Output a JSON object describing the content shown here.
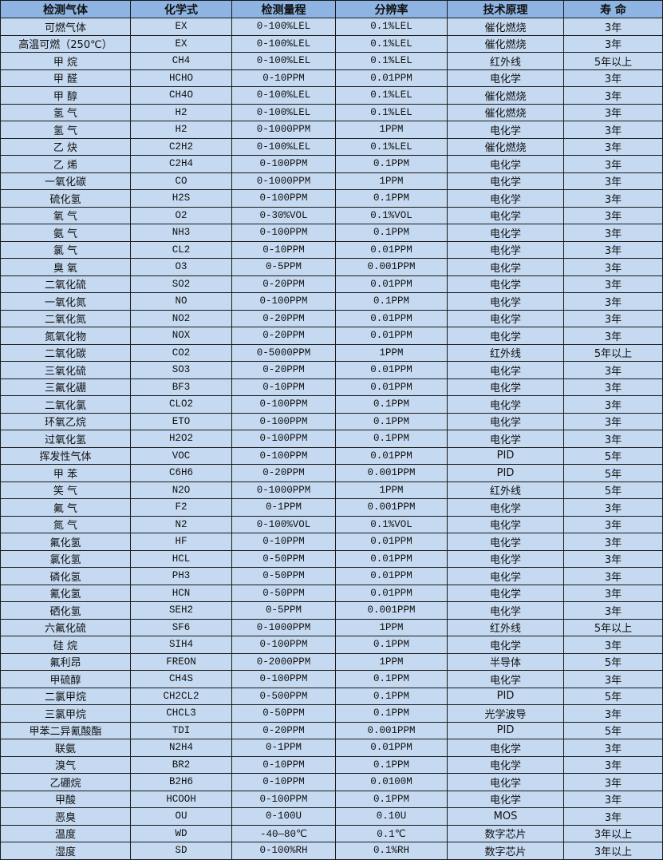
{
  "colors": {
    "header_bg": "#8db4e2",
    "row_bg": "#c5d9f1",
    "border": "#1a1a1a"
  },
  "table": {
    "headers": [
      "检测气体",
      "化学式",
      "检测量程",
      "分辨率",
      "技术原理",
      "寿 命"
    ],
    "rows": [
      [
        "可燃气体",
        "EX",
        "0-100%LEL",
        "0.1%LEL",
        "催化燃烧",
        "3年"
      ],
      [
        "高温可燃（250℃）",
        "EX",
        "0-100%LEL",
        "0.1%LEL",
        "催化燃烧",
        "3年"
      ],
      [
        "甲 烷",
        "CH4",
        "0-100%LEL",
        "0.1%LEL",
        "红外线",
        "5年以上"
      ],
      [
        "甲 醛",
        "HCHO",
        "0-10PPM",
        "0.01PPM",
        "电化学",
        "3年"
      ],
      [
        "甲 醇",
        "CH4O",
        "0-100%LEL",
        "0.1%LEL",
        "催化燃烧",
        "3年"
      ],
      [
        "氢 气",
        "H2",
        "0-100%LEL",
        "0.1%LEL",
        "催化燃烧",
        "3年"
      ],
      [
        "氢 气",
        "H2",
        "0-1000PPM",
        "1PPM",
        "电化学",
        "3年"
      ],
      [
        "乙 炔",
        "C2H2",
        "0-100%LEL",
        "0.1%LEL",
        "催化燃烧",
        "3年"
      ],
      [
        "乙 烯",
        "C2H4",
        "0-100PPM",
        "0.1PPM",
        "电化学",
        "3年"
      ],
      [
        "一氧化碳",
        "CO",
        "0-1000PPM",
        "1PPM",
        "电化学",
        "3年"
      ],
      [
        "硫化氢",
        "H2S",
        "0-100PPM",
        "0.1PPM",
        "电化学",
        "3年"
      ],
      [
        "氧 气",
        "O2",
        "0-30%VOL",
        "0.1%VOL",
        "电化学",
        "3年"
      ],
      [
        "氨 气",
        "NH3",
        "0-100PPM",
        "0.1PPM",
        "电化学",
        "3年"
      ],
      [
        "氯 气",
        "CL2",
        "0-10PPM",
        "0.01PPM",
        "电化学",
        "3年"
      ],
      [
        "臭 氧",
        "O3",
        "0-5PPM",
        "0.001PPM",
        "电化学",
        "3年"
      ],
      [
        "二氧化硫",
        "SO2",
        "0-20PPM",
        "0.01PPM",
        "电化学",
        "3年"
      ],
      [
        "一氧化氮",
        "NO",
        "0-100PPM",
        "0.1PPM",
        "电化学",
        "3年"
      ],
      [
        "二氧化氮",
        "NO2",
        "0-20PPM",
        "0.01PPM",
        "电化学",
        "3年"
      ],
      [
        "氮氧化物",
        "NOX",
        "0-20PPM",
        "0.01PPM",
        "电化学",
        "3年"
      ],
      [
        "二氧化碳",
        "CO2",
        "0-5000PPM",
        "1PPM",
        "红外线",
        "5年以上"
      ],
      [
        "三氧化硫",
        "SO3",
        "0-20PPM",
        "0.01PPM",
        "电化学",
        "3年"
      ],
      [
        "三氟化硼",
        "BF3",
        "0-10PPM",
        "0.01PPM",
        "电化学",
        "3年"
      ],
      [
        "二氧化氯",
        "CLO2",
        "0-100PPM",
        "0.1PPM",
        "电化学",
        "3年"
      ],
      [
        "环氧乙烷",
        "ETO",
        "0-100PPM",
        "0.1PPM",
        "电化学",
        "3年"
      ],
      [
        "过氧化氢",
        "H2O2",
        "0-100PPM",
        "0.1PPM",
        "电化学",
        "3年"
      ],
      [
        "挥发性气体",
        "VOC",
        "0-100PPM",
        "0.01PPM",
        "PID",
        "5年"
      ],
      [
        "甲 苯",
        "C6H6",
        "0-20PPM",
        "0.001PPM",
        "PID",
        "5年"
      ],
      [
        "笑 气",
        "N2O",
        "0-1000PPM",
        "1PPM",
        "红外线",
        "5年"
      ],
      [
        "氟 气",
        "F2",
        "0-1PPM",
        "0.001PPM",
        "电化学",
        "3年"
      ],
      [
        "氮 气",
        "N2",
        "0-100%VOL",
        "0.1%VOL",
        "电化学",
        "3年"
      ],
      [
        "氟化氢",
        "HF",
        "0-10PPM",
        "0.01PPM",
        "电化学",
        "3年"
      ],
      [
        "氯化氢",
        "HCL",
        "0-50PPM",
        "0.01PPM",
        "电化学",
        "3年"
      ],
      [
        "磷化氢",
        "PH3",
        "0-50PPM",
        "0.01PPM",
        "电化学",
        "3年"
      ],
      [
        "氰化氢",
        "HCN",
        "0-50PPM",
        "0.01PPM",
        "电化学",
        "3年"
      ],
      [
        "硒化氢",
        "SEH2",
        "0-5PPM",
        "0.001PPM",
        "电化学",
        "3年"
      ],
      [
        "六氟化硫",
        "SF6",
        "0-1000PPM",
        "1PPM",
        "红外线",
        "5年以上"
      ],
      [
        "硅 烷",
        "SIH4",
        "0-100PPM",
        "0.1PPM",
        "电化学",
        "3年"
      ],
      [
        "氟利昂",
        "FREON",
        "0-2000PPM",
        "1PPM",
        "半导体",
        "5年"
      ],
      [
        "甲硫醇",
        "CH4S",
        "0-100PPM",
        "0.1PPM",
        "电化学",
        "3年"
      ],
      [
        "二氯甲烷",
        "CH2CL2",
        "0-500PPM",
        "0.1PPM",
        "PID",
        "5年"
      ],
      [
        "三氯甲烷",
        "CHCL3",
        "0-50PPM",
        "0.1PPM",
        "光学波导",
        "3年"
      ],
      [
        "甲苯二异氰酸酯",
        "TDI",
        "0-20PPM",
        "0.001PPM",
        "PID",
        "5年"
      ],
      [
        "联氨",
        "N2H4",
        "0-1PPM",
        "0.01PPM",
        "电化学",
        "3年"
      ],
      [
        "溴气",
        "BR2",
        "0-10PPM",
        "0.1PPM",
        "电化学",
        "3年"
      ],
      [
        "乙硼烷",
        "B2H6",
        "0-10PPM",
        "0.0100M",
        "电化学",
        "3年"
      ],
      [
        "甲酸",
        "HCOOH",
        "0-100PPM",
        "0.1PPM",
        "电化学",
        "3年"
      ],
      [
        "恶臭",
        "OU",
        "0-100U",
        "0.10U",
        "MOS",
        "3年"
      ],
      [
        "温度",
        "WD",
        "-40—80℃",
        "0.1℃",
        "数字芯片",
        "3年以上"
      ],
      [
        "湿度",
        "SD",
        "0-100%RH",
        "0.1%RH",
        "数字芯片",
        "3年以上"
      ]
    ]
  }
}
